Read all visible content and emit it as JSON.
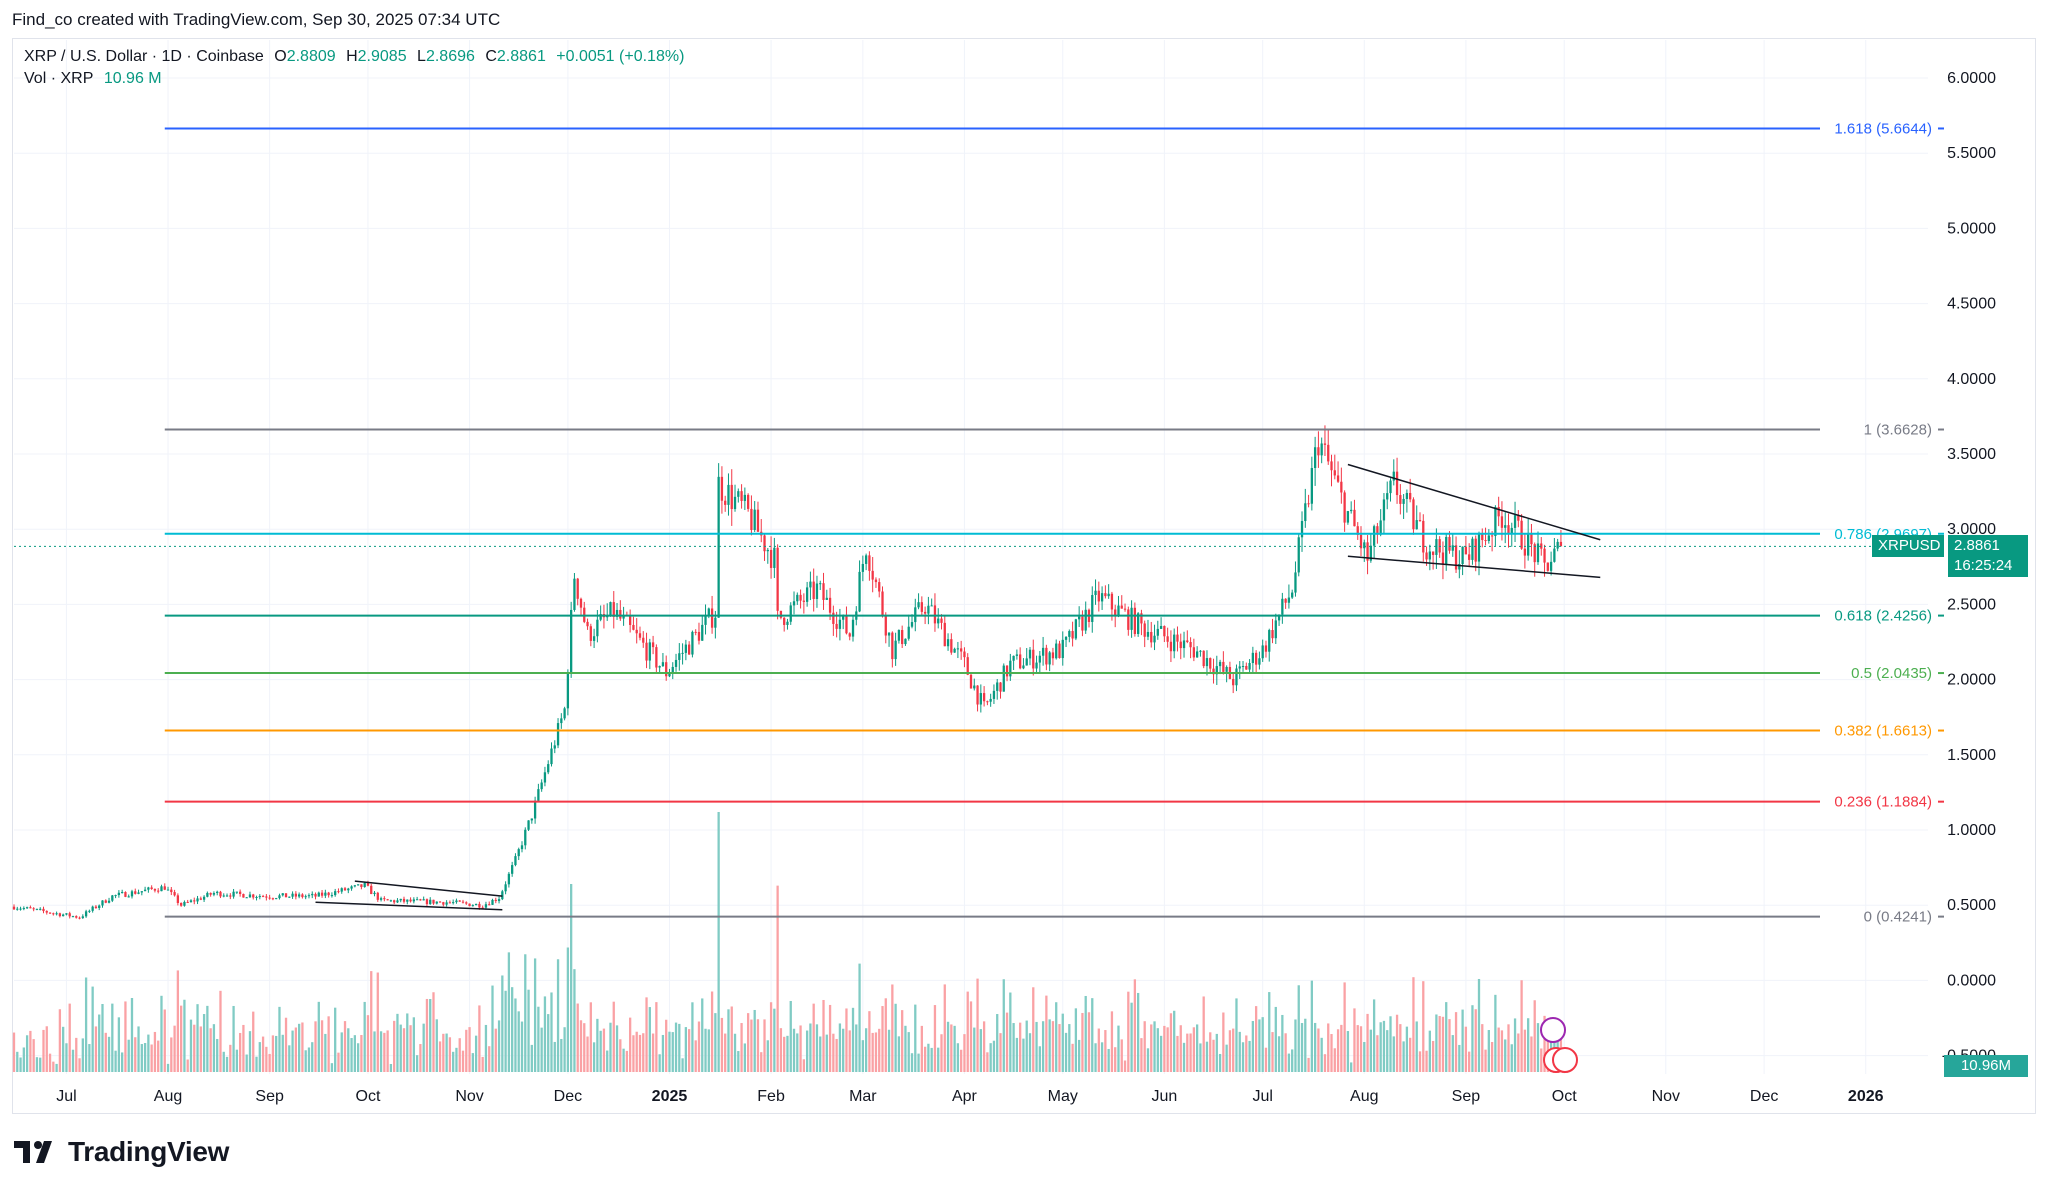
{
  "header": {
    "credit": "Find_co created with TradingView.com, Sep 30, 2025 07:34 UTC"
  },
  "legend": {
    "symbol": "XRP / U.S. Dollar · 1D · Coinbase",
    "open_label": "O",
    "open": "2.8809",
    "high_label": "H",
    "high": "2.9085",
    "low_label": "L",
    "low": "2.8696",
    "close_label": "C",
    "close": "2.8861",
    "change": "+0.0051 (+0.18%)",
    "vol_label": "Vol · XRP",
    "vol": "10.96 M"
  },
  "price_tag": {
    "symbol": "XRPUSD",
    "price": "2.8861",
    "countdown": "16:25:24"
  },
  "volume_tag": "10.96M",
  "brand": {
    "name": "TradingView"
  },
  "colors": {
    "up": "#089981",
    "down": "#f23645",
    "up_vol": "#80cbc4",
    "down_vol": "#faa1a4",
    "grid": "#f0f3fa",
    "axis_text": "#131722"
  },
  "chart_data": {
    "type": "candlestick",
    "symbol": "XRPUSD",
    "interval": "1D",
    "y_ticks": [
      "6.0000",
      "5.5000",
      "5.0000",
      "4.5000",
      "4.0000",
      "3.5000",
      "3.0000",
      "2.5000",
      "2.0000",
      "1.5000",
      "1.0000",
      "0.5000",
      "0.0000",
      "-0.5000"
    ],
    "y_range": [
      -0.5,
      6.2
    ],
    "x_ticks": [
      "Jul",
      "Aug",
      "Sep",
      "Oct",
      "Nov",
      "Dec",
      "2025",
      "Feb",
      "Mar",
      "Apr",
      "May",
      "Jun",
      "Jul",
      "Aug",
      "Sep",
      "Oct",
      "Nov",
      "Dec",
      "2026"
    ],
    "x_range": [
      "2024-06-15",
      "2026-01-20"
    ],
    "last_price": 2.8861,
    "fibonacci": [
      {
        "label": "1.618 (5.6644)",
        "level": 1.618,
        "price": 5.6644,
        "color": "#2962ff"
      },
      {
        "label": "1 (3.6628)",
        "level": 1,
        "price": 3.6628,
        "color": "#787b86"
      },
      {
        "label": "0.786 (2.9697)",
        "level": 0.786,
        "price": 2.9697,
        "color": "#00bcd4"
      },
      {
        "label": "0.618 (2.4256)",
        "level": 0.618,
        "price": 2.4256,
        "color": "#089981"
      },
      {
        "label": "0.5 (2.0435)",
        "level": 0.5,
        "price": 2.0435,
        "color": "#4caf50"
      },
      {
        "label": "0.382 (1.6613)",
        "level": 0.382,
        "price": 1.6613,
        "color": "#ff9800"
      },
      {
        "label": "0.236 (1.1884)",
        "level": 0.236,
        "price": 1.1884,
        "color": "#f23645"
      },
      {
        "label": "0 (0.4241)",
        "level": 0,
        "price": 0.4241,
        "color": "#787b86"
      }
    ],
    "trendlines": [
      {
        "from": [
          "2024-09-27",
          0.66
        ],
        "to": [
          "2024-11-11",
          0.56
        ]
      },
      {
        "from": [
          "2024-09-15",
          0.52
        ],
        "to": [
          "2024-11-11",
          0.47
        ]
      },
      {
        "from": [
          "2025-07-27",
          3.43
        ],
        "to": [
          "2025-10-12",
          2.93
        ]
      },
      {
        "from": [
          "2025-07-27",
          2.82
        ],
        "to": [
          "2025-10-12",
          2.68
        ]
      }
    ],
    "price_path": [
      [
        "2024-06-15",
        0.49
      ],
      [
        "2024-07-05",
        0.42
      ],
      [
        "2024-07-15",
        0.56
      ],
      [
        "2024-07-31",
        0.62
      ],
      [
        "2024-08-05",
        0.5
      ],
      [
        "2024-08-15",
        0.58
      ],
      [
        "2024-09-01",
        0.56
      ],
      [
        "2024-09-15",
        0.56
      ],
      [
        "2024-09-30",
        0.63
      ],
      [
        "2024-10-05",
        0.53
      ],
      [
        "2024-10-25",
        0.52
      ],
      [
        "2024-11-05",
        0.5
      ],
      [
        "2024-11-10",
        0.55
      ],
      [
        "2024-11-15",
        0.8
      ],
      [
        "2024-11-20",
        1.1
      ],
      [
        "2024-11-25",
        1.45
      ],
      [
        "2024-11-30",
        1.8
      ],
      [
        "2024-12-03",
        2.7
      ],
      [
        "2024-12-07",
        2.3
      ],
      [
        "2024-12-15",
        2.45
      ],
      [
        "2024-12-31",
        2.05
      ],
      [
        "2025-01-15",
        2.45
      ],
      [
        "2025-01-16",
        3.3
      ],
      [
        "2025-01-25",
        3.1
      ],
      [
        "2025-02-02",
        2.8
      ],
      [
        "2025-02-03",
        2.4
      ],
      [
        "2025-02-15",
        2.6
      ],
      [
        "2025-02-25",
        2.3
      ],
      [
        "2025-03-02",
        2.9
      ],
      [
        "2025-03-10",
        2.2
      ],
      [
        "2025-03-20",
        2.5
      ],
      [
        "2025-04-01",
        2.1
      ],
      [
        "2025-04-07",
        1.8
      ],
      [
        "2025-04-15",
        2.1
      ],
      [
        "2025-05-01",
        2.2
      ],
      [
        "2025-05-12",
        2.55
      ],
      [
        "2025-05-25",
        2.35
      ],
      [
        "2025-06-10",
        2.2
      ],
      [
        "2025-06-22",
        2.0
      ],
      [
        "2025-07-01",
        2.2
      ],
      [
        "2025-07-10",
        2.6
      ],
      [
        "2025-07-18",
        3.6
      ],
      [
        "2025-07-25",
        3.2
      ],
      [
        "2025-08-02",
        2.8
      ],
      [
        "2025-08-10",
        3.3
      ],
      [
        "2025-08-20",
        2.9
      ],
      [
        "2025-09-01",
        2.8
      ],
      [
        "2025-09-12",
        3.1
      ],
      [
        "2025-09-20",
        2.9
      ],
      [
        "2025-09-25",
        2.75
      ],
      [
        "2025-09-30",
        2.8861
      ]
    ]
  }
}
